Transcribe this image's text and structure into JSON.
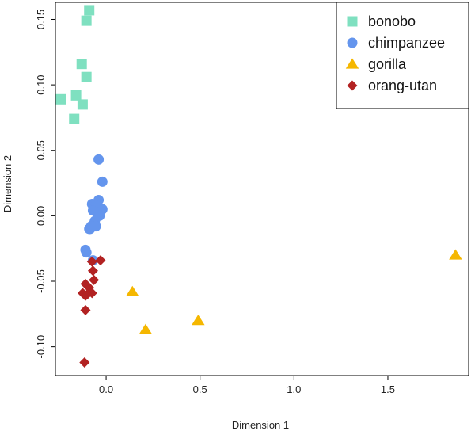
{
  "chart_data": {
    "type": "scatter",
    "xlabel": "Dimension 1",
    "ylabel": "Dimension 2",
    "xlim": [
      -0.27,
      1.93
    ],
    "ylim": [
      -0.122,
      0.163
    ],
    "x_ticks": [
      0.0,
      0.5,
      1.0,
      1.5
    ],
    "x_tick_labels": [
      "0.0",
      "0.5",
      "1.0",
      "1.5"
    ],
    "y_ticks": [
      0.15,
      0.1,
      0.05,
      0.0,
      -0.05,
      -0.1
    ],
    "y_tick_labels": [
      "0.15",
      "0.10",
      "0.05",
      "0.00",
      "-0.05",
      "-0.10"
    ],
    "grid": false,
    "legend_position": "top-right",
    "series": [
      {
        "name": "bonobo",
        "color": "#7FE0C0",
        "marker": "square",
        "points": [
          [
            -0.09,
            0.157
          ],
          [
            -0.105,
            0.149
          ],
          [
            -0.13,
            0.116
          ],
          [
            -0.105,
            0.106
          ],
          [
            -0.16,
            0.092
          ],
          [
            -0.24,
            0.089
          ],
          [
            -0.125,
            0.085
          ],
          [
            -0.17,
            0.074
          ]
        ]
      },
      {
        "name": "chimpanzee",
        "color": "#6495ED",
        "marker": "circle",
        "points": [
          [
            -0.04,
            0.043
          ],
          [
            -0.02,
            0.026
          ],
          [
            -0.04,
            0.012
          ],
          [
            -0.075,
            0.009
          ],
          [
            -0.055,
            0.008
          ],
          [
            -0.02,
            0.005
          ],
          [
            -0.07,
            0.004
          ],
          [
            -0.045,
            0.002
          ],
          [
            -0.035,
            0.0
          ],
          [
            -0.06,
            -0.004
          ],
          [
            -0.075,
            -0.008
          ],
          [
            -0.09,
            -0.01
          ],
          [
            -0.065,
            -0.006
          ],
          [
            -0.055,
            -0.008
          ],
          [
            -0.085,
            -0.01
          ],
          [
            -0.08,
            -0.008
          ],
          [
            -0.11,
            -0.026
          ],
          [
            -0.105,
            -0.028
          ],
          [
            -0.07,
            -0.034
          ]
        ]
      },
      {
        "name": "gorilla",
        "color": "#F5B700",
        "marker": "triangle",
        "points": [
          [
            1.86,
            -0.03
          ],
          [
            0.14,
            -0.058
          ],
          [
            0.49,
            -0.08
          ],
          [
            0.21,
            -0.087
          ]
        ]
      },
      {
        "name": "orang-utan",
        "color": "#B22222",
        "marker": "diamond",
        "points": [
          [
            -0.03,
            -0.034
          ],
          [
            -0.075,
            -0.035
          ],
          [
            -0.07,
            -0.042
          ],
          [
            -0.065,
            -0.049
          ],
          [
            -0.11,
            -0.052
          ],
          [
            -0.09,
            -0.055
          ],
          [
            -0.125,
            -0.059
          ],
          [
            -0.075,
            -0.059
          ],
          [
            -0.11,
            -0.061
          ],
          [
            -0.1,
            -0.06
          ],
          [
            -0.11,
            -0.072
          ],
          [
            -0.115,
            -0.112
          ]
        ]
      }
    ]
  }
}
